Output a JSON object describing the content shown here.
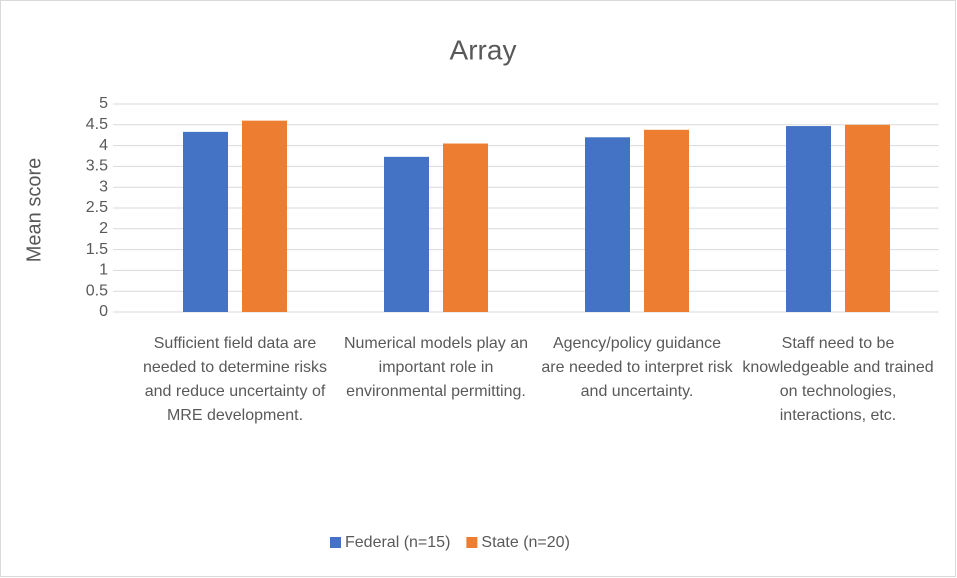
{
  "chart_data": {
    "type": "bar",
    "title": "Array",
    "y_label": "Mean score",
    "categories": [
      "Sufficient field data are needed to determine risks and reduce uncertainty of MRE development.",
      "Numerical models play an important role in environmental permitting.",
      "Agency/policy guidance are needed to interpret risk and uncertainty.",
      "Staff need to be knowledgeable and trained on technologies, interactions, etc."
    ],
    "series": [
      {
        "name": "Federal (n=15)",
        "color": "#4472c4",
        "values": [
          4.33,
          3.73,
          4.2,
          4.47
        ]
      },
      {
        "name": "State (n=20)",
        "color": "#ed7d31",
        "values": [
          4.6,
          4.05,
          4.38,
          4.5
        ]
      }
    ],
    "ylim": [
      0,
      5
    ],
    "yticks": [
      0,
      0.5,
      1,
      1.5,
      2,
      2.5,
      3,
      3.5,
      4,
      4.5,
      5
    ],
    "grid": true,
    "legend": "bottom"
  }
}
